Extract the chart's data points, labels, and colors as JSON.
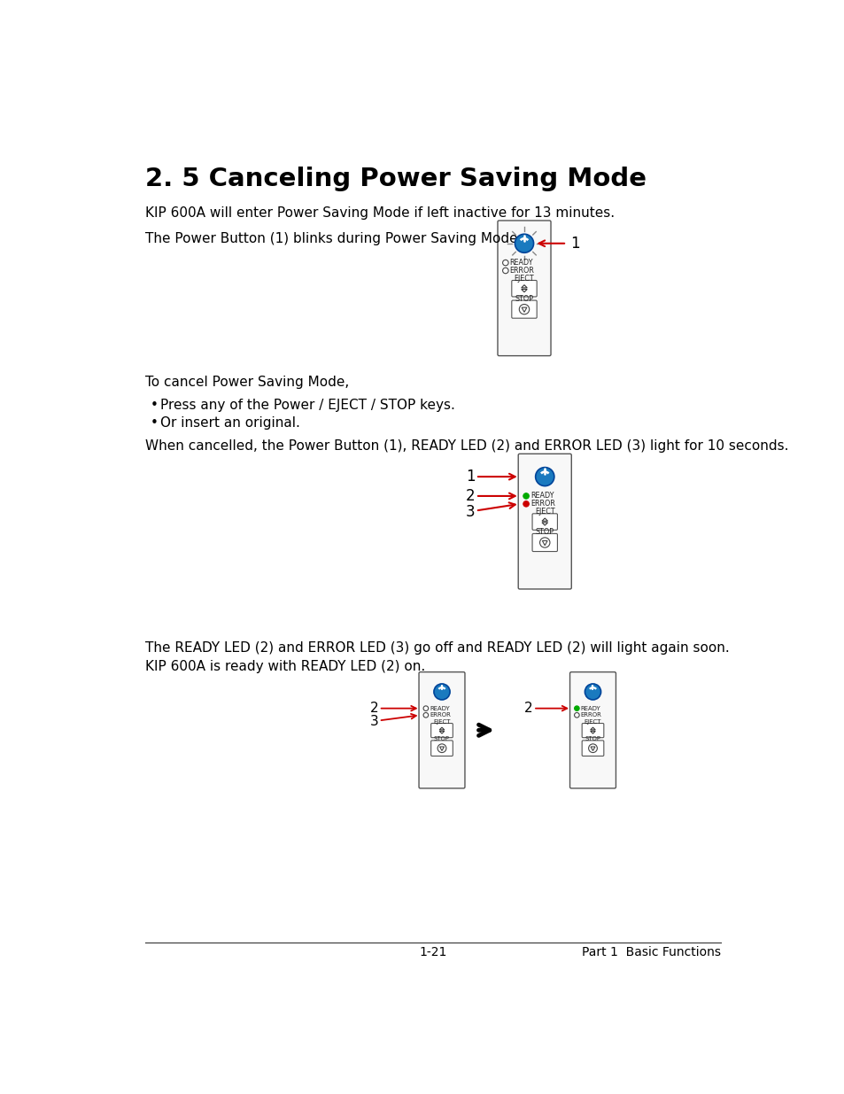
{
  "title": "2. 5 Canceling Power Saving Mode",
  "para1": "KIP 600A will enter Power Saving Mode if left inactive for 13 minutes.",
  "para2": "The Power Button (1) blinks during Power Saving Mode.",
  "para3": "To cancel Power Saving Mode,",
  "bullet1": "Press any of the Power / EJECT / STOP keys.",
  "bullet2": "Or insert an original.",
  "para4": "When cancelled, the Power Button (1), READY LED (2) and ERROR LED (3) light for 10 seconds.",
  "para5": "The READY LED (2) and ERROR LED (3) go off and READY LED (2) will light again soon.\nKIP 600A is ready with READY LED (2) on.",
  "footer_left": "1-21",
  "footer_right": "Part 1  Basic Functions",
  "bg_color": "#ffffff",
  "text_color": "#000000",
  "title_color": "#000000",
  "red_color": "#cc0000",
  "green_color": "#00aa00",
  "blue_color": "#1a7abf",
  "arrow_color": "#cc0000"
}
